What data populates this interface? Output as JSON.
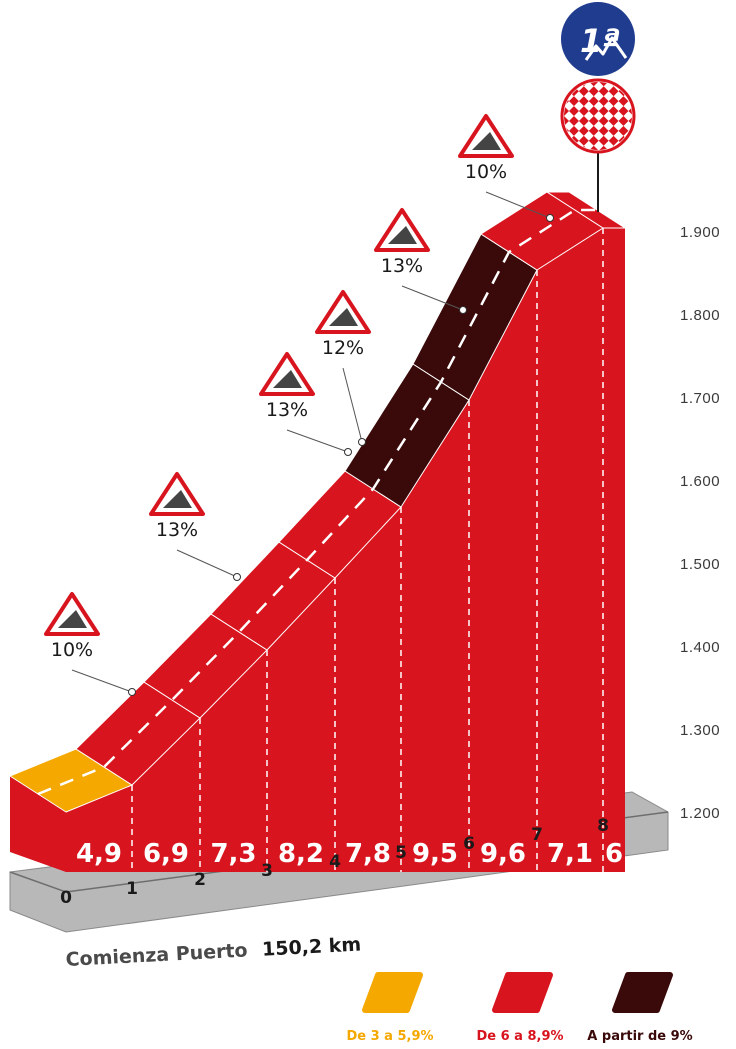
{
  "chart_data": {
    "type": "area",
    "km_axis": [
      "0",
      "1",
      "2",
      "3",
      "4",
      "5",
      "6",
      "7",
      "8"
    ],
    "elevation_axis": [
      "1.200",
      "1.300",
      "1.400",
      "1.500",
      "1.600",
      "1.700",
      "1.800",
      "1.900"
    ],
    "ylim": [
      1200,
      1900
    ],
    "segments": [
      {
        "km_start": 0,
        "km_end": 1,
        "avg_gradient": "4,9",
        "value": 4.9,
        "category": "De 3 a 5,9%"
      },
      {
        "km_start": 1,
        "km_end": 2,
        "avg_gradient": "6,9",
        "value": 6.9,
        "category": "De 6 a 8,9%"
      },
      {
        "km_start": 2,
        "km_end": 3,
        "avg_gradient": "7,3",
        "value": 7.3,
        "category": "De 6 a 8,9%"
      },
      {
        "km_start": 3,
        "km_end": 4,
        "avg_gradient": "8,2",
        "value": 8.2,
        "category": "De 6 a 8,9%"
      },
      {
        "km_start": 4,
        "km_end": 5,
        "avg_gradient": "7,8",
        "value": 7.8,
        "category": "De 6 a 8,9%"
      },
      {
        "km_start": 5,
        "km_end": 6,
        "avg_gradient": "9,5",
        "value": 9.5,
        "category": "A partir de 9%"
      },
      {
        "km_start": 6,
        "km_end": 7,
        "avg_gradient": "9,6",
        "value": 9.6,
        "category": "A partir de 9%"
      },
      {
        "km_start": 7,
        "km_end": 8,
        "avg_gradient": "7,1",
        "value": 7.1,
        "category": "De 6 a 8,9%"
      },
      {
        "km_start": 8,
        "km_end": 8.3,
        "avg_gradient": "6",
        "value": 6,
        "category": "De 6 a 8,9%"
      }
    ],
    "max_ramps": [
      {
        "label": "10%",
        "km": 1.0
      },
      {
        "label": "13%",
        "km": 2.6
      },
      {
        "label": "13%",
        "km": 4.2
      },
      {
        "label": "12%",
        "km": 4.4
      },
      {
        "label": "13%",
        "km": 5.9
      },
      {
        "label": "10%",
        "km": 7.8
      }
    ],
    "legend": [
      {
        "label": "De 3 a 5,9%",
        "color": "#F5A800"
      },
      {
        "label": "De 6 a 8,9%",
        "color": "#D8141E"
      },
      {
        "label": "A partir de 9%",
        "color": "#3A0A0A"
      }
    ],
    "grid": false
  },
  "start_text": {
    "prefix": "Comienza Puerto",
    "distance": "150,2 km"
  },
  "category_badge": {
    "label": "1ª"
  },
  "colors": {
    "red": "#D8141E",
    "dark_red": "#3A0A0A",
    "orange": "#F5A800",
    "base_gray": "#B8B8B8",
    "blue": "#1F3C8F"
  },
  "icons": [
    "mountain-icon",
    "checkered-flag-icon",
    "warning-triangle-icon"
  ]
}
